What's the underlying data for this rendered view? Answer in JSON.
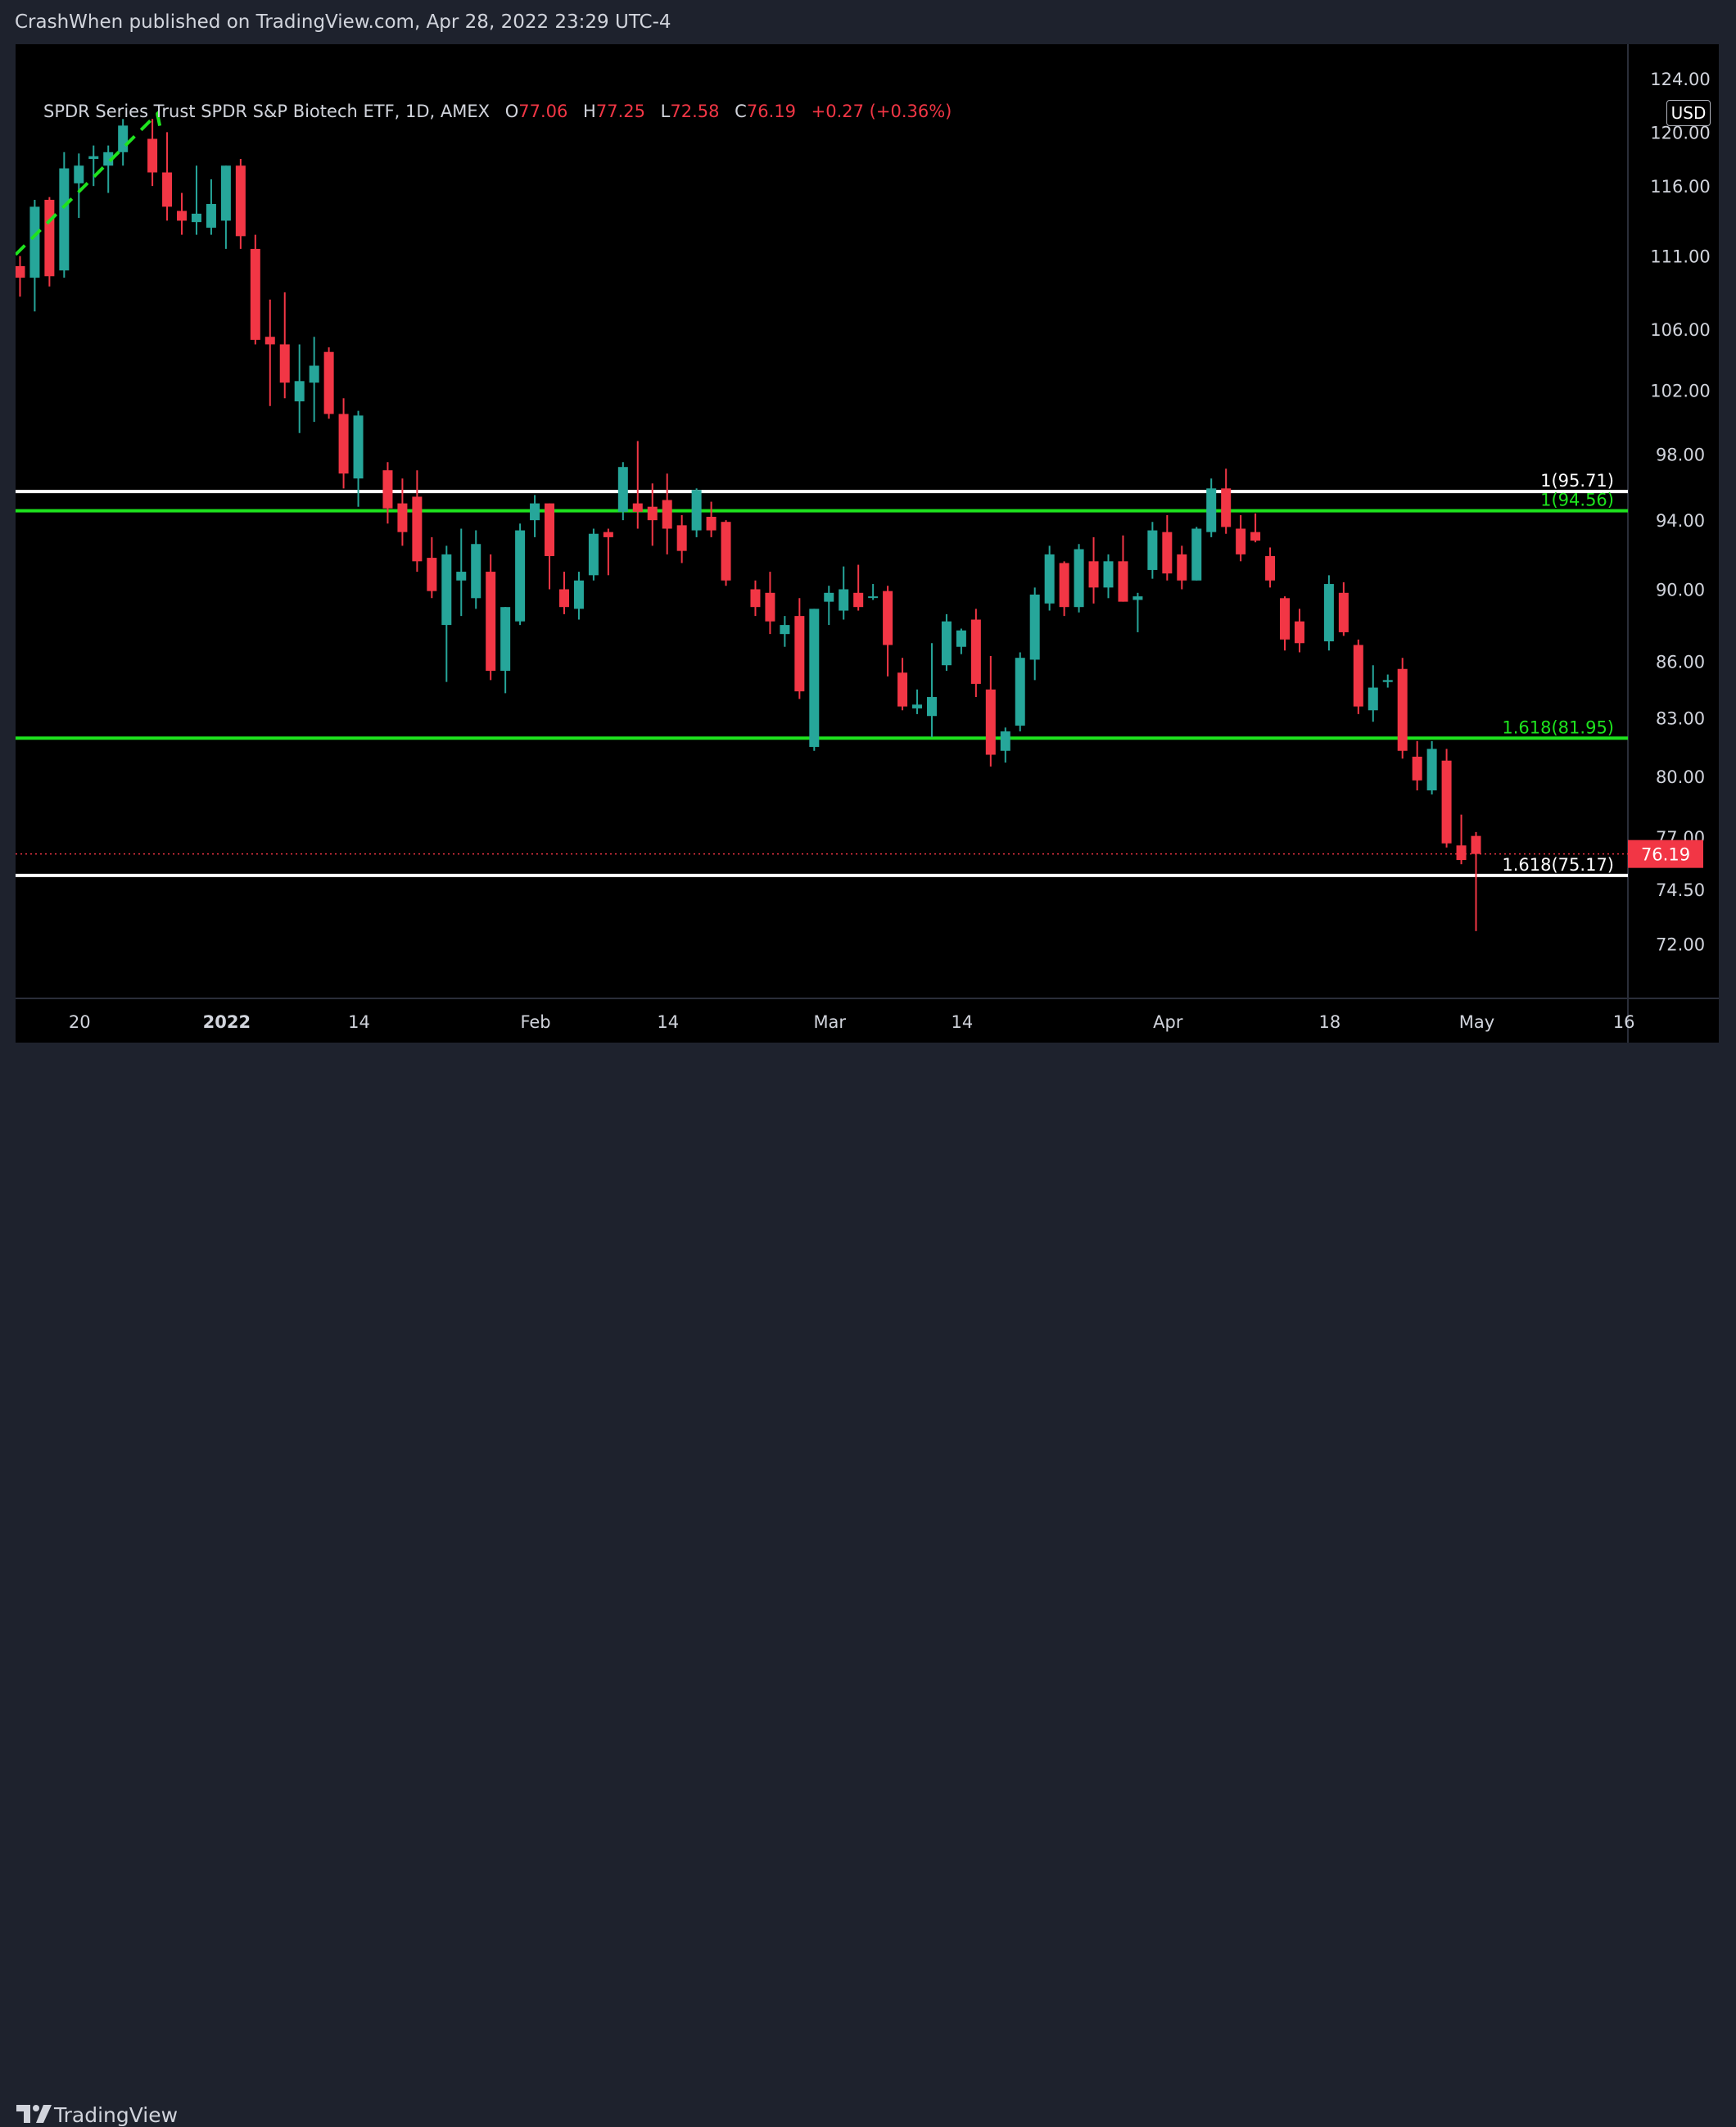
{
  "header": {
    "publisher_line": "CrashWhen published on TradingView.com, Apr 28, 2022 23:29 UTC-4"
  },
  "legend": {
    "symbol": "SPDR Series Trust SPDR S&P Biotech ETF, 1D, AMEX",
    "open_label": "O",
    "open": "77.06",
    "high_label": "H",
    "high": "77.25",
    "low_label": "L",
    "low": "72.58",
    "close_label": "C",
    "close": "76.19",
    "change": "+0.27 (+0.36%)"
  },
  "currency": "USD",
  "footer": {
    "brand": "TradingView"
  },
  "colors": {
    "up": "#26a69a",
    "down": "#f23645",
    "fib_white": "#ffffff",
    "fib_green": "#1ee31e",
    "background": "#000000",
    "panel": "#1e222d"
  },
  "chart_data": {
    "type": "candlestick",
    "y_scale": "log",
    "ylim": [
      70.4,
      125.4
    ],
    "y_ticks": [
      "120.00",
      "116.00",
      "111.00",
      "106.00",
      "102.00",
      "98.00",
      "94.00",
      "90.00",
      "86.00",
      "83.00",
      "80.00",
      "77.00",
      "74.50",
      "72.00"
    ],
    "top_partial_tick": "124.00",
    "x_ticks": [
      "20",
      "2022",
      "14",
      "Feb",
      "14",
      "Mar",
      "14",
      "Apr",
      "18",
      "May",
      "16"
    ],
    "last_price": "76.19",
    "levels": [
      {
        "label": "1(95.71)",
        "value": 95.71,
        "color": "white"
      },
      {
        "label": "1(94.56)",
        "value": 94.56,
        "color": "green"
      },
      {
        "label": "1.618(81.95)",
        "value": 81.95,
        "color": "green"
      },
      {
        "label": "1.618(75.17)",
        "value": 75.17,
        "color": "white"
      }
    ],
    "candles": [
      {
        "d": "2021-12-14",
        "o": 110.3,
        "h": 111.0,
        "l": 108.2,
        "c": 109.5
      },
      {
        "d": "2021-12-15",
        "o": 109.5,
        "h": 115.0,
        "l": 107.2,
        "c": 114.5
      },
      {
        "d": "2021-12-16",
        "o": 115.0,
        "h": 115.2,
        "l": 108.9,
        "c": 109.6
      },
      {
        "d": "2021-12-17",
        "o": 110.0,
        "h": 118.5,
        "l": 109.5,
        "c": 117.3
      },
      {
        "d": "2021-12-20",
        "o": 116.2,
        "h": 118.4,
        "l": 113.7,
        "c": 117.5
      },
      {
        "d": "2021-12-21",
        "o": 118.0,
        "h": 119.0,
        "l": 116.0,
        "c": 118.2
      },
      {
        "d": "2021-12-22",
        "o": 117.5,
        "h": 119.0,
        "l": 115.5,
        "c": 118.5
      },
      {
        "d": "2021-12-23",
        "o": 118.5,
        "h": 121.0,
        "l": 117.5,
        "c": 120.5
      },
      {
        "d": "2021-12-27",
        "o": 119.5,
        "h": 121.0,
        "l": 116.0,
        "c": 117.0
      },
      {
        "d": "2021-12-28",
        "o": 117.0,
        "h": 120.0,
        "l": 113.5,
        "c": 114.5
      },
      {
        "d": "2021-12-29",
        "o": 114.2,
        "h": 115.5,
        "l": 112.5,
        "c": 113.5
      },
      {
        "d": "2021-12-30",
        "o": 113.4,
        "h": 117.5,
        "l": 112.5,
        "c": 114.0
      },
      {
        "d": "2021-12-31",
        "o": 113.0,
        "h": 116.5,
        "l": 112.5,
        "c": 114.7
      },
      {
        "d": "2022-01-03",
        "o": 113.5,
        "h": 117.5,
        "l": 111.5,
        "c": 117.5
      },
      {
        "d": "2022-01-04",
        "o": 117.5,
        "h": 118.0,
        "l": 111.5,
        "c": 112.4
      },
      {
        "d": "2022-01-05",
        "o": 111.5,
        "h": 112.5,
        "l": 105.0,
        "c": 105.3
      },
      {
        "d": "2022-01-06",
        "o": 105.5,
        "h": 108.0,
        "l": 101.0,
        "c": 105.0
      },
      {
        "d": "2022-01-07",
        "o": 105.0,
        "h": 108.5,
        "l": 101.5,
        "c": 102.5
      },
      {
        "d": "2022-01-10",
        "o": 101.3,
        "h": 105.0,
        "l": 99.3,
        "c": 102.6
      },
      {
        "d": "2022-01-11",
        "o": 102.5,
        "h": 105.5,
        "l": 100.0,
        "c": 103.6
      },
      {
        "d": "2022-01-12",
        "o": 104.5,
        "h": 104.8,
        "l": 100.2,
        "c": 100.5
      },
      {
        "d": "2022-01-13",
        "o": 100.5,
        "h": 101.5,
        "l": 95.9,
        "c": 96.8
      },
      {
        "d": "2022-01-14",
        "o": 96.5,
        "h": 100.7,
        "l": 94.8,
        "c": 100.4
      },
      {
        "d": "2022-01-18",
        "o": 97.0,
        "h": 97.5,
        "l": 93.8,
        "c": 94.7
      },
      {
        "d": "2022-01-19",
        "o": 95.0,
        "h": 96.5,
        "l": 92.5,
        "c": 93.3
      },
      {
        "d": "2022-01-20",
        "o": 95.4,
        "h": 97.0,
        "l": 91.0,
        "c": 91.6
      },
      {
        "d": "2022-01-21",
        "o": 91.8,
        "h": 93.0,
        "l": 89.5,
        "c": 89.9
      },
      {
        "d": "2022-01-24",
        "o": 88.0,
        "h": 92.5,
        "l": 84.9,
        "c": 92.0
      },
      {
        "d": "2022-01-25",
        "o": 90.5,
        "h": 93.5,
        "l": 88.5,
        "c": 91.0
      },
      {
        "d": "2022-01-26",
        "o": 89.5,
        "h": 93.4,
        "l": 88.9,
        "c": 92.6
      },
      {
        "d": "2022-01-27",
        "o": 91.0,
        "h": 92.0,
        "l": 85.0,
        "c": 85.5
      },
      {
        "d": "2022-01-28",
        "o": 85.5,
        "h": 89.0,
        "l": 84.3,
        "c": 89.0
      },
      {
        "d": "2022-01-31",
        "o": 88.2,
        "h": 93.8,
        "l": 88.0,
        "c": 93.4
      },
      {
        "d": "2022-02-01",
        "o": 94.0,
        "h": 95.5,
        "l": 93.0,
        "c": 95.0
      },
      {
        "d": "2022-02-02",
        "o": 95.0,
        "h": 95.0,
        "l": 90.0,
        "c": 91.9
      },
      {
        "d": "2022-02-03",
        "o": 90.0,
        "h": 91.0,
        "l": 88.6,
        "c": 89.0
      },
      {
        "d": "2022-02-04",
        "o": 88.9,
        "h": 91.0,
        "l": 88.3,
        "c": 90.5
      },
      {
        "d": "2022-02-07",
        "o": 90.8,
        "h": 93.5,
        "l": 90.5,
        "c": 93.2
      },
      {
        "d": "2022-02-08",
        "o": 93.3,
        "h": 93.5,
        "l": 90.8,
        "c": 93.0
      },
      {
        "d": "2022-02-09",
        "o": 94.5,
        "h": 97.5,
        "l": 94.0,
        "c": 97.2
      },
      {
        "d": "2022-02-10",
        "o": 95.0,
        "h": 98.8,
        "l": 93.5,
        "c": 94.5
      },
      {
        "d": "2022-02-11",
        "o": 94.8,
        "h": 96.2,
        "l": 92.5,
        "c": 94.0
      },
      {
        "d": "2022-02-14",
        "o": 95.2,
        "h": 96.8,
        "l": 92.0,
        "c": 93.5
      },
      {
        "d": "2022-02-15",
        "o": 93.7,
        "h": 94.3,
        "l": 91.5,
        "c": 92.2
      },
      {
        "d": "2022-02-16",
        "o": 93.4,
        "h": 95.9,
        "l": 93.0,
        "c": 95.8
      },
      {
        "d": "2022-02-17",
        "o": 94.2,
        "h": 95.1,
        "l": 93.0,
        "c": 93.4
      },
      {
        "d": "2022-02-18",
        "o": 93.9,
        "h": 94.0,
        "l": 90.2,
        "c": 90.5
      },
      {
        "d": "2022-02-22",
        "o": 90.0,
        "h": 90.5,
        "l": 88.5,
        "c": 89.0
      },
      {
        "d": "2022-02-23",
        "o": 89.8,
        "h": 91.0,
        "l": 87.5,
        "c": 88.2
      },
      {
        "d": "2022-02-24",
        "o": 87.5,
        "h": 88.5,
        "l": 86.8,
        "c": 88.0
      },
      {
        "d": "2022-02-25",
        "o": 88.5,
        "h": 89.5,
        "l": 84.0,
        "c": 84.4
      },
      {
        "d": "2022-02-28",
        "o": 81.5,
        "h": 88.9,
        "l": 81.3,
        "c": 88.9
      },
      {
        "d": "2022-03-01",
        "o": 89.3,
        "h": 90.2,
        "l": 88.0,
        "c": 89.8
      },
      {
        "d": "2022-03-02",
        "o": 88.8,
        "h": 91.3,
        "l": 88.3,
        "c": 90.0
      },
      {
        "d": "2022-03-03",
        "o": 89.8,
        "h": 91.4,
        "l": 88.8,
        "c": 89.0
      },
      {
        "d": "2022-03-04",
        "o": 89.6,
        "h": 90.3,
        "l": 89.4,
        "c": 89.6
      },
      {
        "d": "2022-03-07",
        "o": 89.9,
        "h": 90.2,
        "l": 85.2,
        "c": 86.9
      },
      {
        "d": "2022-03-08",
        "o": 85.4,
        "h": 86.2,
        "l": 83.4,
        "c": 83.6
      },
      {
        "d": "2022-03-09",
        "o": 83.5,
        "h": 84.5,
        "l": 83.2,
        "c": 83.7
      },
      {
        "d": "2022-03-10",
        "o": 83.1,
        "h": 87.0,
        "l": 82.0,
        "c": 84.1
      },
      {
        "d": "2022-03-11",
        "o": 85.8,
        "h": 88.6,
        "l": 85.5,
        "c": 88.2
      },
      {
        "d": "2022-03-14",
        "o": 86.8,
        "h": 87.8,
        "l": 86.4,
        "c": 87.7
      },
      {
        "d": "2022-03-15",
        "o": 88.3,
        "h": 88.9,
        "l": 84.1,
        "c": 84.8
      },
      {
        "d": "2022-03-16",
        "o": 84.5,
        "h": 86.3,
        "l": 80.5,
        "c": 81.1
      },
      {
        "d": "2022-03-17",
        "o": 81.3,
        "h": 82.5,
        "l": 80.7,
        "c": 82.3
      },
      {
        "d": "2022-03-18",
        "o": 82.6,
        "h": 86.5,
        "l": 82.3,
        "c": 86.2
      },
      {
        "d": "2022-03-21",
        "o": 86.1,
        "h": 90.1,
        "l": 85.0,
        "c": 89.7
      },
      {
        "d": "2022-03-22",
        "o": 89.2,
        "h": 92.5,
        "l": 88.8,
        "c": 92.0
      },
      {
        "d": "2022-03-23",
        "o": 91.5,
        "h": 91.6,
        "l": 88.5,
        "c": 89.0
      },
      {
        "d": "2022-03-24",
        "o": 89.0,
        "h": 92.6,
        "l": 88.7,
        "c": 92.3
      },
      {
        "d": "2022-03-25",
        "o": 91.6,
        "h": 93.0,
        "l": 89.2,
        "c": 90.1
      },
      {
        "d": "2022-03-28",
        "o": 90.1,
        "h": 92.0,
        "l": 89.5,
        "c": 91.6
      },
      {
        "d": "2022-03-29",
        "o": 91.6,
        "h": 93.1,
        "l": 89.3,
        "c": 89.3
      },
      {
        "d": "2022-03-30",
        "o": 89.4,
        "h": 89.8,
        "l": 87.6,
        "c": 89.6
      },
      {
        "d": "2022-03-31",
        "o": 91.1,
        "h": 93.9,
        "l": 90.6,
        "c": 93.4
      },
      {
        "d": "2022-04-01",
        "o": 93.3,
        "h": 94.3,
        "l": 90.5,
        "c": 90.9
      },
      {
        "d": "2022-04-04",
        "o": 92.0,
        "h": 92.5,
        "l": 90.0,
        "c": 90.5
      },
      {
        "d": "2022-04-05",
        "o": 90.5,
        "h": 93.6,
        "l": 90.5,
        "c": 93.5
      },
      {
        "d": "2022-04-06",
        "o": 93.3,
        "h": 96.5,
        "l": 93.0,
        "c": 95.9
      },
      {
        "d": "2022-04-07",
        "o": 95.9,
        "h": 97.1,
        "l": 93.2,
        "c": 93.6
      },
      {
        "d": "2022-04-08",
        "o": 93.5,
        "h": 94.3,
        "l": 91.6,
        "c": 92.0
      },
      {
        "d": "2022-04-11",
        "o": 93.3,
        "h": 94.4,
        "l": 92.7,
        "c": 92.8
      },
      {
        "d": "2022-04-12",
        "o": 91.9,
        "h": 92.4,
        "l": 90.1,
        "c": 90.5
      },
      {
        "d": "2022-04-13",
        "o": 89.5,
        "h": 89.6,
        "l": 86.6,
        "c": 87.2
      },
      {
        "d": "2022-04-14",
        "o": 88.2,
        "h": 88.9,
        "l": 86.5,
        "c": 87.0
      },
      {
        "d": "2022-04-18",
        "o": 87.1,
        "h": 90.8,
        "l": 86.6,
        "c": 90.3
      },
      {
        "d": "2022-04-19",
        "o": 89.8,
        "h": 90.4,
        "l": 87.4,
        "c": 87.6
      },
      {
        "d": "2022-04-20",
        "o": 86.9,
        "h": 87.2,
        "l": 83.2,
        "c": 83.6
      },
      {
        "d": "2022-04-21",
        "o": 83.4,
        "h": 85.8,
        "l": 82.8,
        "c": 84.6
      },
      {
        "d": "2022-04-22",
        "o": 84.9,
        "h": 85.3,
        "l": 84.6,
        "c": 85.0
      },
      {
        "d": "2022-04-25",
        "o": 85.6,
        "h": 86.2,
        "l": 80.9,
        "c": 81.3
      },
      {
        "d": "2022-04-26",
        "o": 81.0,
        "h": 81.8,
        "l": 79.3,
        "c": 79.8
      },
      {
        "d": "2022-04-27",
        "o": 79.3,
        "h": 81.8,
        "l": 79.1,
        "c": 81.4
      },
      {
        "d": "2022-04-28",
        "o": 80.8,
        "h": 81.4,
        "l": 76.5,
        "c": 76.7
      },
      {
        "d": "2022-04-29",
        "o": 76.6,
        "h": 78.1,
        "l": 75.7,
        "c": 75.9
      },
      {
        "d": "2022-05-02",
        "o": 77.06,
        "h": 77.25,
        "l": 72.58,
        "c": 76.19
      }
    ]
  }
}
